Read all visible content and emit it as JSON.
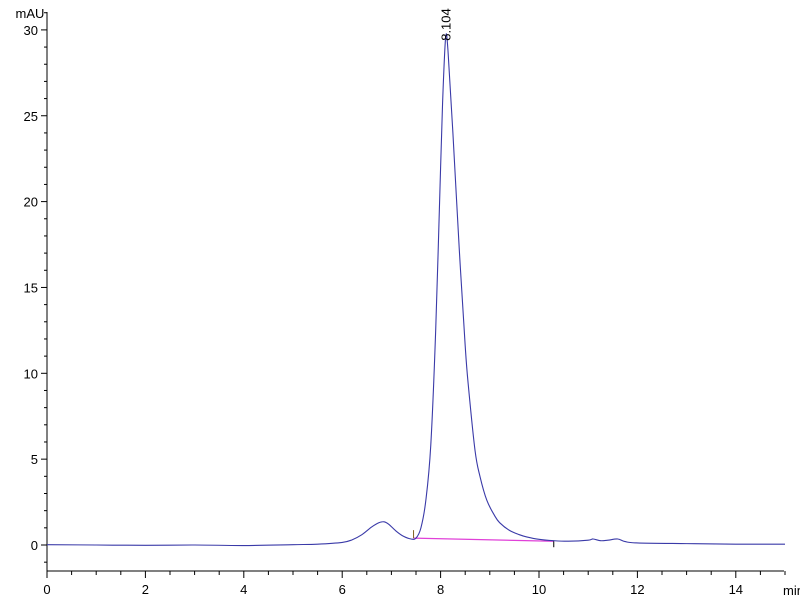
{
  "chart_data": {
    "type": "line",
    "title": "",
    "xlabel": "min",
    "ylabel": "mAU",
    "xlim": [
      0,
      15
    ],
    "ylim": [
      -1.5,
      31
    ],
    "x_ticks": [
      0,
      2,
      4,
      6,
      8,
      10,
      12,
      14
    ],
    "y_ticks": [
      0,
      5,
      10,
      15,
      20,
      25,
      30
    ],
    "grid": false,
    "legend": "none",
    "colors": {
      "trace": "#3a3aa8",
      "baseline": "#e040d8",
      "axis": "#000000"
    },
    "series": [
      {
        "x": [
          0,
          1,
          2,
          3,
          4,
          5,
          5.5,
          6.0,
          6.2,
          6.4,
          6.6,
          6.75,
          6.85,
          6.95,
          7.1,
          7.25,
          7.4,
          7.5,
          7.6,
          7.7,
          7.8,
          7.9,
          8.0,
          8.05,
          8.104,
          8.15,
          8.25,
          8.38,
          8.5,
          8.56,
          8.7,
          8.8,
          8.94,
          9.1,
          9.2,
          9.4,
          9.6,
          9.75,
          10.0,
          10.3,
          10.6,
          11.0,
          11.1,
          11.25,
          11.4,
          11.6,
          11.75,
          12,
          13,
          14,
          15
        ],
        "y": [
          0.02,
          0.0,
          -0.02,
          0,
          -0.03,
          0.02,
          0.05,
          0.15,
          0.3,
          0.6,
          1.05,
          1.3,
          1.35,
          1.2,
          0.8,
          0.5,
          0.35,
          0.4,
          1.0,
          2.6,
          5.8,
          12.5,
          22,
          26.5,
          29.6,
          28.8,
          24,
          17.2,
          11.6,
          9.4,
          5.5,
          4.0,
          2.6,
          1.7,
          1.3,
          0.85,
          0.6,
          0.47,
          0.33,
          0.25,
          0.22,
          0.28,
          0.35,
          0.25,
          0.28,
          0.35,
          0.2,
          0.12,
          0.08,
          0.05,
          0.05
        ]
      }
    ],
    "integration_baseline": {
      "x": [
        7.45,
        10.3
      ],
      "y": [
        0.4,
        0.22
      ]
    },
    "peak_labels": [
      {
        "x": 8.104,
        "y": 29.6,
        "text": "8.104"
      }
    ]
  }
}
